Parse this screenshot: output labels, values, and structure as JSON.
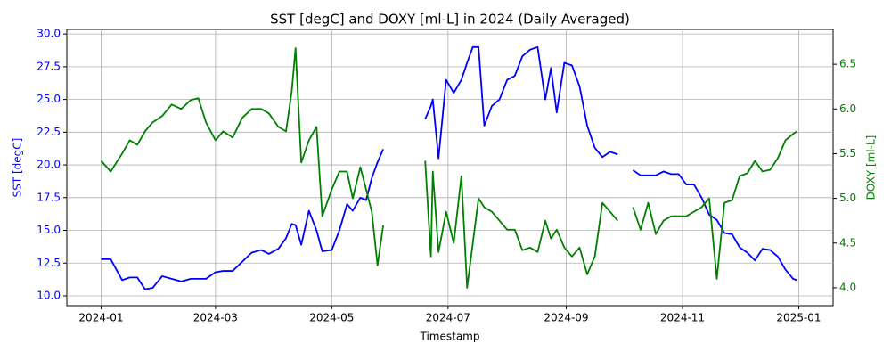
{
  "chart_data": {
    "type": "line",
    "title": "SST [degC] and DOXY [ml-L] in 2024 (Daily Averaged)",
    "x_label": "Timestamp",
    "y_label": "SST [degC]",
    "y2_label": "DOXY [ml-L]",
    "x": [
      "2024-01-01",
      "2024-01-06",
      "2024-01-12",
      "2024-01-16",
      "2024-01-20",
      "2024-01-24",
      "2024-01-28",
      "2024-02-02",
      "2024-02-07",
      "2024-02-12",
      "2024-02-17",
      "2024-02-21",
      "2024-02-25",
      "2024-03-01",
      "2024-03-05",
      "2024-03-10",
      "2024-03-15",
      "2024-03-20",
      "2024-03-25",
      "2024-03-29",
      "2024-04-03",
      "2024-04-07",
      "2024-04-10",
      "2024-04-12",
      "2024-04-15",
      "2024-04-19",
      "2024-04-23",
      "2024-04-26",
      "2024-05-01",
      "2024-05-05",
      "2024-05-09",
      "2024-05-12",
      "2024-05-16",
      "2024-05-19",
      "2024-05-22",
      "2024-05-25",
      "2024-05-28",
      "2024-06-05",
      "2024-06-19",
      "2024-06-22",
      "2024-06-23",
      "2024-06-26",
      "2024-06-30",
      "2024-07-04",
      "2024-07-08",
      "2024-07-11",
      "2024-07-14",
      "2024-07-17",
      "2024-07-20",
      "2024-07-24",
      "2024-07-28",
      "2024-08-01",
      "2024-08-05",
      "2024-08-09",
      "2024-08-13",
      "2024-08-17",
      "2024-08-21",
      "2024-08-24",
      "2024-08-27",
      "2024-08-31",
      "2024-09-04",
      "2024-09-08",
      "2024-09-12",
      "2024-09-16",
      "2024-09-20",
      "2024-09-24",
      "2024-09-28",
      "2024-10-02",
      "2024-10-06",
      "2024-10-10",
      "2024-10-14",
      "2024-10-18",
      "2024-10-22",
      "2024-10-26",
      "2024-10-30",
      "2024-11-03",
      "2024-11-07",
      "2024-11-11",
      "2024-11-15",
      "2024-11-19",
      "2024-11-23",
      "2024-11-27",
      "2024-12-01",
      "2024-12-05",
      "2024-12-09",
      "2024-12-13",
      "2024-12-17",
      "2024-12-21",
      "2024-12-25",
      "2024-12-29",
      "2024-12-31"
    ],
    "series": [
      {
        "name": "SST [degC]",
        "color": "#0000ff",
        "axis": "y",
        "values": [
          12.8,
          12.8,
          11.2,
          11.4,
          11.4,
          10.5,
          10.6,
          11.5,
          11.3,
          11.1,
          11.3,
          11.3,
          11.3,
          11.8,
          11.9,
          11.9,
          12.6,
          13.3,
          13.5,
          13.2,
          13.6,
          14.4,
          15.5,
          15.4,
          13.9,
          16.5,
          15.0,
          13.4,
          13.5,
          15.0,
          17.0,
          16.5,
          17.5,
          17.3,
          19.0,
          20.2,
          21.2,
          null,
          23.5,
          24.5,
          25.0,
          20.5,
          26.5,
          25.5,
          26.5,
          27.8,
          29.0,
          29.0,
          23.0,
          24.5,
          25.0,
          26.5,
          26.8,
          28.3,
          28.8,
          29.0,
          25.0,
          27.4,
          24.0,
          27.8,
          27.6,
          26.0,
          23.0,
          21.3,
          20.6,
          21.0,
          20.8,
          null,
          19.6,
          19.2,
          19.2,
          19.2,
          19.5,
          19.3,
          19.3,
          18.5,
          18.5,
          17.5,
          16.2,
          15.8,
          14.8,
          14.7,
          13.7,
          13.3,
          12.7,
          13.6,
          13.5,
          13.0,
          12.0,
          11.3,
          11.2
        ]
      },
      {
        "name": "DOXY [ml-L]",
        "color": "#008000",
        "axis": "y2",
        "values": [
          5.42,
          5.3,
          5.5,
          5.65,
          5.6,
          5.75,
          5.85,
          5.92,
          6.05,
          6.0,
          6.1,
          6.12,
          5.85,
          5.65,
          5.75,
          5.68,
          5.9,
          6.0,
          6.0,
          5.95,
          5.8,
          5.75,
          6.2,
          6.68,
          5.4,
          5.65,
          5.8,
          4.8,
          5.1,
          5.3,
          5.3,
          5.0,
          5.35,
          5.1,
          4.85,
          4.25,
          4.7,
          null,
          5.42,
          4.35,
          5.3,
          4.4,
          4.85,
          4.5,
          5.25,
          4.0,
          4.5,
          5.0,
          4.9,
          4.85,
          4.75,
          4.65,
          4.65,
          4.42,
          4.45,
          4.4,
          4.75,
          4.55,
          4.65,
          4.45,
          4.35,
          4.45,
          4.15,
          4.35,
          4.95,
          4.85,
          4.75,
          null,
          4.9,
          4.65,
          4.95,
          4.6,
          4.75,
          4.8,
          4.8,
          4.8,
          4.85,
          4.9,
          5.0,
          4.1,
          4.95,
          4.98,
          5.25,
          5.28,
          5.42,
          5.3,
          5.32,
          5.45,
          5.65,
          5.72,
          5.75
        ]
      }
    ],
    "xlim": [
      "2023-12-14",
      "2025-01-19"
    ],
    "xticks": [
      {
        "value": "2024-01-01",
        "label": "2024-01"
      },
      {
        "value": "2024-03-01",
        "label": "2024-03"
      },
      {
        "value": "2024-05-01",
        "label": "2024-05"
      },
      {
        "value": "2024-07-01",
        "label": "2024-07"
      },
      {
        "value": "2024-09-01",
        "label": "2024-09"
      },
      {
        "value": "2024-11-01",
        "label": "2024-11"
      },
      {
        "value": "2025-01-01",
        "label": "2025-01"
      }
    ],
    "ylim": [
      9.25,
      30.35
    ],
    "yticks": [
      {
        "value": 10,
        "label": "10.0"
      },
      12.5,
      {
        "value": 15,
        "label": "15.0"
      },
      17.5,
      {
        "value": 20,
        "label": "20.0"
      },
      22.5,
      {
        "value": 25,
        "label": "25.0"
      },
      27.5,
      {
        "value": 30,
        "label": "30.0"
      }
    ],
    "y2lim": [
      3.8,
      6.89
    ],
    "y2ticks": [
      {
        "value": 4,
        "label": "4.0"
      },
      4.5,
      {
        "value": 5,
        "label": "5.0"
      },
      5.5,
      {
        "value": 6,
        "label": "6.0"
      },
      6.5
    ],
    "grid": true
  }
}
